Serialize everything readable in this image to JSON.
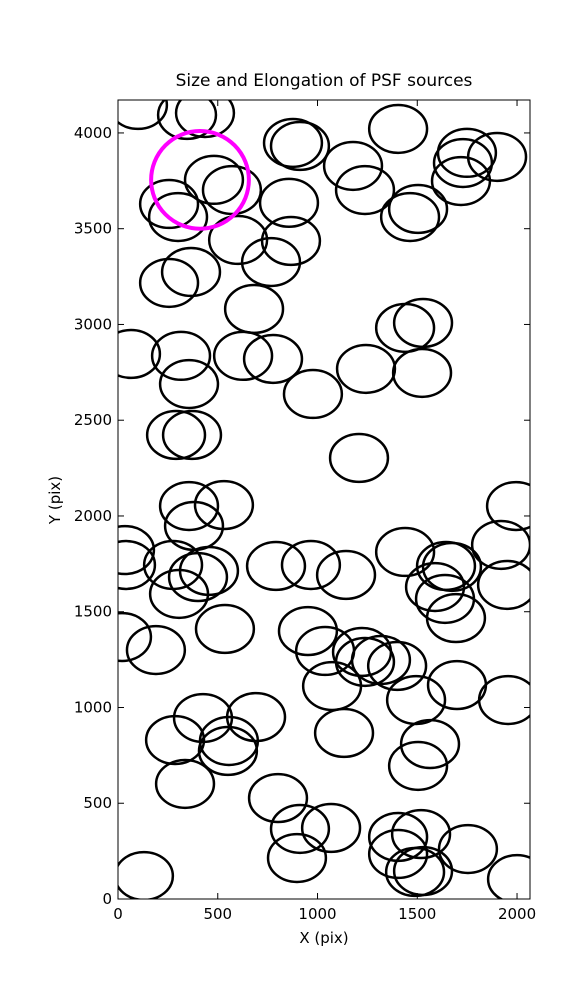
{
  "chart_data": {
    "type": "scatter",
    "title": "Size and Elongation of PSF sources",
    "x_label": "X (pix)",
    "y_label": "Y (pix)",
    "xlim": [
      0,
      2065
    ],
    "ylim": [
      0,
      4172
    ],
    "xticks": [
      0,
      500,
      1000,
      1500,
      2000
    ],
    "yticks": [
      0,
      500,
      1000,
      1500,
      2000,
      2500,
      3000,
      3500,
      4000
    ],
    "series": [
      {
        "color": "#000000",
        "marker_width": 290,
        "marker_height": 250,
        "x": [
          100,
          346,
          436,
          877,
          912,
          1404,
          1178,
          1238,
          1749,
          1729,
          1900,
          1719,
          256,
          301,
          481,
          571,
          857,
          1464,
          1504,
          602,
          867,
          767,
          366,
          256,
          682,
          1439,
          1529,
          65,
          316,
          356,
          627,
          777,
          1243,
          1524,
          977,
          291,
          371,
          1208,
          356,
          531,
          381,
          1995,
          35,
          40,
          276,
          401,
          456,
          306,
          792,
          967,
          1143,
          1439,
          1644,
          1674,
          1589,
          1639,
          1694,
          1920,
          1950,
          20,
          190,
          536,
          952,
          1038,
          1073,
          1223,
          1238,
          1318,
          1399,
          1494,
          1699,
          1955,
          1133,
          426,
          286,
          556,
          551,
          692,
          1564,
          1504,
          336,
          802,
          912,
          897,
          1068,
          1404,
          1404,
          1519,
          1489,
          1529,
          1754,
          2000,
          130
        ],
        "y": [
          4146,
          4094,
          4104,
          3948,
          3932,
          4021,
          3828,
          3702,
          3896,
          3843,
          3875,
          3749,
          3629,
          3561,
          3755,
          3702,
          3635,
          3561,
          3603,
          3441,
          3436,
          3326,
          3274,
          3217,
          3081,
          2982,
          3008,
          2846,
          2836,
          2689,
          2836,
          2820,
          2768,
          2747,
          2637,
          2423,
          2423,
          2303,
          2052,
          2057,
          1948,
          2052,
          1822,
          1744,
          1744,
          1681,
          1713,
          1593,
          1739,
          1744,
          1692,
          1812,
          1739,
          1734,
          1629,
          1567,
          1467,
          1849,
          1640,
          1368,
          1300,
          1410,
          1399,
          1295,
          1112,
          1290,
          1238,
          1248,
          1217,
          1039,
          1117,
          1039,
          867,
          945,
          830,
          825,
          773,
          950,
          809,
          695,
          601,
          527,
          366,
          214,
          371,
          324,
          235,
          339,
          141,
          146,
          261,
          104,
          120
        ]
      },
      {
        "color": "#ff00ff",
        "marker_width": 490,
        "marker_height": 510,
        "x": [
          411
        ],
        "y": [
          3755
        ]
      }
    ]
  }
}
